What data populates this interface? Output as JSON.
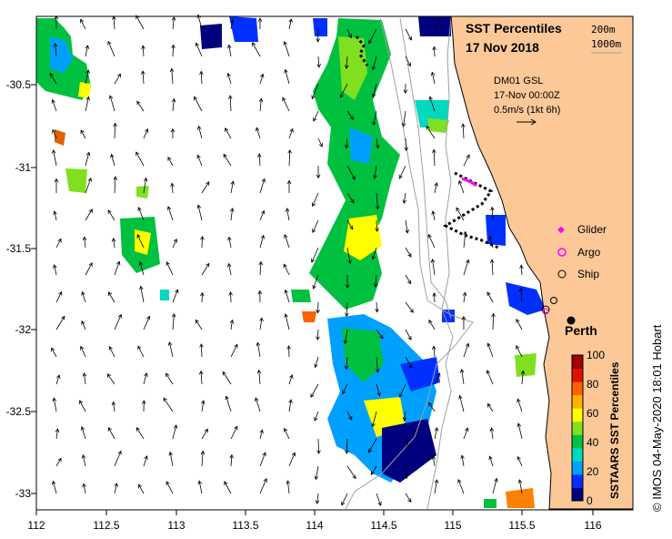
{
  "title": {
    "line1": "SST Percentiles",
    "line2": "17 Nov 2018"
  },
  "depth_contours": [
    "200m",
    "1000m"
  ],
  "current_info": {
    "mooring": "DM01 GSL",
    "time": "17-Nov 00:00Z",
    "scale": "0.5m/s (1kt 6h)"
  },
  "legend": {
    "glider": "Glider",
    "argo": "Argo",
    "ship": "Ship",
    "glider_color": "#ff00ff",
    "argo_color": "#ff00ff",
    "ship_color": "#000000"
  },
  "city": "Perth",
  "colorbar": {
    "title": "SSTAARS SST Percentiles",
    "ticks": [
      "100",
      "80",
      "60",
      "40",
      "20",
      "0"
    ],
    "colors": [
      "#00007f",
      "#0030ff",
      "#00a0ff",
      "#00d8c0",
      "#00c040",
      "#80e020",
      "#ffff00",
      "#ffb000",
      "#ff6000",
      "#e01000",
      "#a00000"
    ]
  },
  "credit": "IMOS 04-May-2020 18:01 Hobart",
  "axes": {
    "x_ticks": [
      "112",
      "112.5",
      "113",
      "113.5",
      "114",
      "114.5",
      "115",
      "115.5",
      "116"
    ],
    "y_ticks": [
      "-30.5",
      "-31",
      "-31.5",
      "-32",
      "-32.5",
      "-33"
    ]
  },
  "colors": {
    "land": "#fcc898",
    "contour": "#a0a0a0",
    "track": "#000000"
  }
}
